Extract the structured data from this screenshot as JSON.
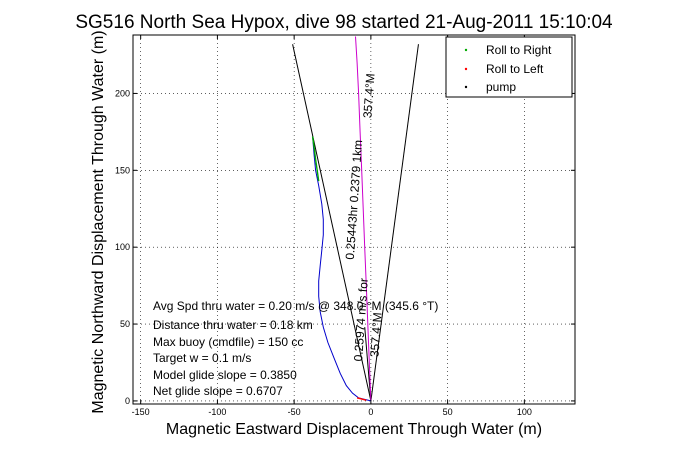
{
  "chart_data": {
    "type": "line",
    "title": "SG516 North Sea Hypox, dive 98 started 21-Aug-2011 15:10:04",
    "xlabel": "Magnetic Eastward Displacement Through Water (m)",
    "ylabel": "Magnetic Northward Displacement Through Water (m)",
    "xlim": [
      -155,
      133
    ],
    "ylim": [
      -2,
      238
    ],
    "xticks": [
      -150,
      -100,
      -50,
      0,
      50,
      100
    ],
    "yticks": [
      0,
      50,
      100,
      150,
      200
    ],
    "grid": true,
    "legend_position": "top-right",
    "legend": [
      {
        "label": "Roll to Right",
        "color": "#00aa00"
      },
      {
        "label": "Roll to Left",
        "color": "#ff0000"
      },
      {
        "label": "pump",
        "color": "#000000"
      }
    ],
    "series": [
      {
        "name": "Roll to Right",
        "color": "#00aa00",
        "x": [
          -38,
          -37,
          -36,
          -35,
          -34
        ],
        "y": [
          172,
          165,
          157,
          150,
          143
        ]
      },
      {
        "name": "Roll to Left",
        "color": "#ff0000",
        "x": [
          -9,
          -7,
          -5,
          -3
        ],
        "y": [
          2,
          1.5,
          1,
          0.5
        ]
      },
      {
        "name": "track",
        "color": "#0000cc",
        "x": [
          -38,
          -37,
          -36,
          -34,
          -32,
          -31,
          -31,
          -32,
          -33,
          -34,
          -34,
          -33,
          -31,
          -28,
          -24,
          -20,
          -16,
          -12,
          -8,
          -4,
          0
        ],
        "y": [
          172,
          160,
          150,
          140,
          128,
          118,
          108,
          98,
          88,
          78,
          68,
          58,
          48,
          38,
          28,
          18,
          10,
          5,
          2,
          1,
          0
        ]
      },
      {
        "name": "heading",
        "color": "#cc00cc",
        "x": [
          -10,
          -9,
          -8,
          -7,
          -6,
          -5,
          -4,
          -3,
          -2,
          -1,
          0
        ],
        "y": [
          237,
          220,
          200,
          175,
          150,
          125,
          100,
          75,
          50,
          25,
          0
        ]
      }
    ],
    "cone_lines": [
      {
        "x": [
          0,
          -51
        ],
        "y": [
          0,
          232
        ]
      },
      {
        "x": [
          0,
          31
        ],
        "y": [
          0,
          232
        ]
      },
      {
        "x": [
          0,
          -4
        ],
        "y": [
          0,
          48
        ]
      }
    ],
    "annotations": {
      "rotated_top": "357.4°M",
      "rotated_main": "0.25443hr 0.2379 1km",
      "rotated_mid": "0.25974 m/s for",
      "rotated_low": "357.4°M",
      "info_lines": [
        "Avg Spd thru water =  0.20 m/s @ 348.0    °M (345.6 °T)",
        "Distance thru water =  0.18 km",
        "Max buoy (cmdfile) = 150 cc",
        "Target w = 0.1 m/s",
        "Model glide slope = 0.3850",
        "Net glide slope = 0.6707"
      ]
    }
  }
}
